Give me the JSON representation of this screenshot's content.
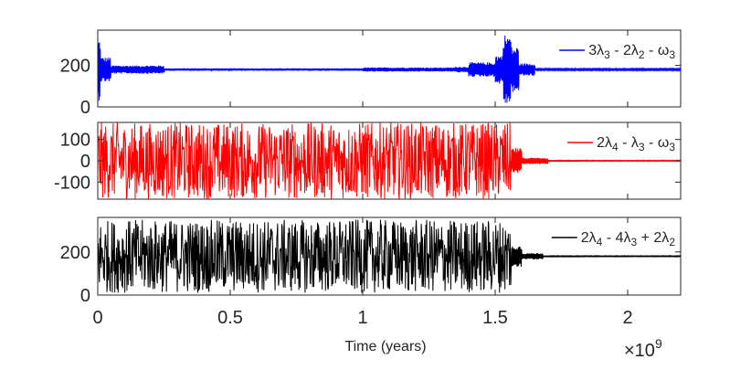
{
  "chart_data": {
    "type": "line",
    "title": "",
    "xlabel": "Time (years)",
    "x_exponent_label": "×10",
    "x_exponent": "9",
    "xlim": [
      0,
      2.2
    ],
    "xticks": [
      0,
      0.5,
      1,
      1.5,
      2
    ],
    "xtick_labels": [
      "0",
      "0.5",
      "1",
      "1.5",
      "2"
    ],
    "grid": false,
    "legend_placement": "right",
    "panels": [
      {
        "id": "top",
        "legend": "3λ₃ - 2λ₂ - ω₃",
        "legend_parts": [
          {
            "t": "3λ"
          },
          {
            "t": "3",
            "sub": true
          },
          {
            "t": " - 2λ"
          },
          {
            "t": "2",
            "sub": true
          },
          {
            "t": " - ω"
          },
          {
            "t": "3",
            "sub": true
          }
        ],
        "color": "#0000ff",
        "ylim": [
          0,
          370
        ],
        "yticks": [
          0,
          200
        ],
        "ytick_labels": [
          "0",
          "200"
        ],
        "baseline": 180,
        "segments": [
          {
            "x0": 0.0,
            "x1": 0.01,
            "amp": 150
          },
          {
            "x0": 0.01,
            "x1": 0.05,
            "amp": 60
          },
          {
            "x0": 0.05,
            "x1": 0.25,
            "amp": 20
          },
          {
            "x0": 0.25,
            "x1": 1.0,
            "amp": 6
          },
          {
            "x0": 1.0,
            "x1": 1.35,
            "amp": 10
          },
          {
            "x0": 1.35,
            "x1": 1.4,
            "amp": 14
          },
          {
            "x0": 1.4,
            "x1": 1.5,
            "amp": 35
          },
          {
            "x0": 1.5,
            "x1": 1.53,
            "amp": 70
          },
          {
            "x0": 1.53,
            "x1": 1.56,
            "amp": 170
          },
          {
            "x0": 1.56,
            "x1": 1.59,
            "amp": 110
          },
          {
            "x0": 1.59,
            "x1": 1.65,
            "amp": 30
          },
          {
            "x0": 1.65,
            "x1": 2.2,
            "amp": 4
          }
        ]
      },
      {
        "id": "middle",
        "legend": "2λ₄ - λ₃ - ω₃",
        "legend_parts": [
          {
            "t": "2λ"
          },
          {
            "t": "4",
            "sub": true
          },
          {
            "t": " - λ"
          },
          {
            "t": "3",
            "sub": true
          },
          {
            "t": " - ω"
          },
          {
            "t": "3",
            "sub": true
          }
        ],
        "color": "#ff0000",
        "ylim": [
          -180,
          180
        ],
        "yticks": [
          -100,
          0,
          100
        ],
        "ytick_labels": [
          "-100",
          "0",
          "100"
        ],
        "baseline": 0,
        "segments": [
          {
            "x0": 0.0,
            "x1": 1.56,
            "amp": 180,
            "chaotic": true
          },
          {
            "x0": 1.56,
            "x1": 1.6,
            "amp": 60
          },
          {
            "x0": 1.6,
            "x1": 1.7,
            "amp": 15
          },
          {
            "x0": 1.7,
            "x1": 2.2,
            "amp": 2
          }
        ]
      },
      {
        "id": "bottom",
        "legend": "2λ₄ - 4λ₃ + 2λ₂",
        "legend_parts": [
          {
            "t": "2λ"
          },
          {
            "t": "4",
            "sub": true
          },
          {
            "t": " - 4λ"
          },
          {
            "t": "3",
            "sub": true
          },
          {
            "t": " + 2λ"
          },
          {
            "t": "2",
            "sub": true
          }
        ],
        "color": "#000000",
        "ylim": [
          0,
          360
        ],
        "yticks": [
          0,
          200
        ],
        "ytick_labels": [
          "0",
          "200"
        ],
        "baseline": 180,
        "segments": [
          {
            "x0": 0.0,
            "x1": 1.56,
            "amp": 170,
            "chaotic": true
          },
          {
            "x0": 1.56,
            "x1": 1.6,
            "amp": 50
          },
          {
            "x0": 1.6,
            "x1": 1.68,
            "amp": 15
          },
          {
            "x0": 1.68,
            "x1": 2.2,
            "amp": 2
          }
        ]
      }
    ]
  }
}
